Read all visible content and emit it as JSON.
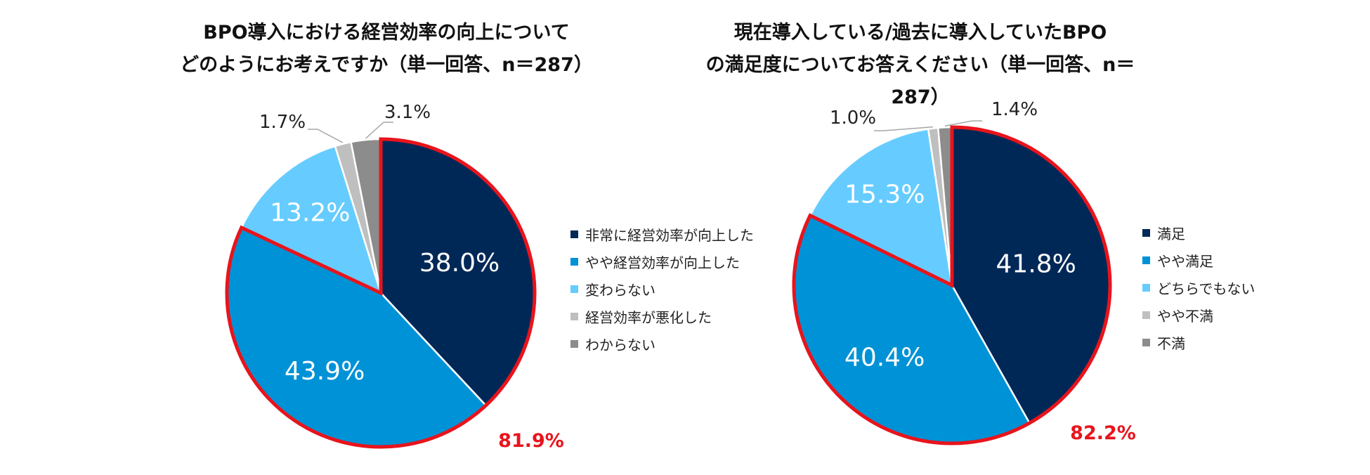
{
  "colors": {
    "dark_navy": "#002857",
    "blue": "#0092d6",
    "light_blue": "#66ccff",
    "light_gray": "#bfbfbf",
    "gray": "#8c8c8c",
    "highlight_red": "#e8141c"
  },
  "chart_data": [
    {
      "type": "pie",
      "title_lines": [
        "BPO導入における経営効率の向上について",
        "どのようにお考えですか（単一回答、n＝287）"
      ],
      "categories": [
        "非常に経営効率が向上した",
        "やや経営効率が向上した",
        "変わらない",
        "経営効率が悪化した",
        "わからない"
      ],
      "values": [
        38.0,
        43.9,
        13.2,
        1.7,
        3.1
      ],
      "value_labels": [
        "38.0%",
        "43.9%",
        "13.2%",
        "1.7%",
        "3.1%"
      ],
      "highlight_total_label": "81.9%",
      "legend_position": "right"
    },
    {
      "type": "pie",
      "title_lines": [
        "現在導入している/過去に導入していたBPO",
        "の満足度についてお答えください（単一回答、n＝287）"
      ],
      "categories": [
        "満足",
        "やや満足",
        "どちらでもない",
        "やや不満",
        "不満"
      ],
      "values": [
        41.8,
        40.4,
        15.3,
        1.0,
        1.4
      ],
      "value_labels": [
        "41.8%",
        "40.4%",
        "15.3%",
        "1.0%",
        "1.4%"
      ],
      "highlight_total_label": "82.2%",
      "legend_position": "right"
    }
  ]
}
